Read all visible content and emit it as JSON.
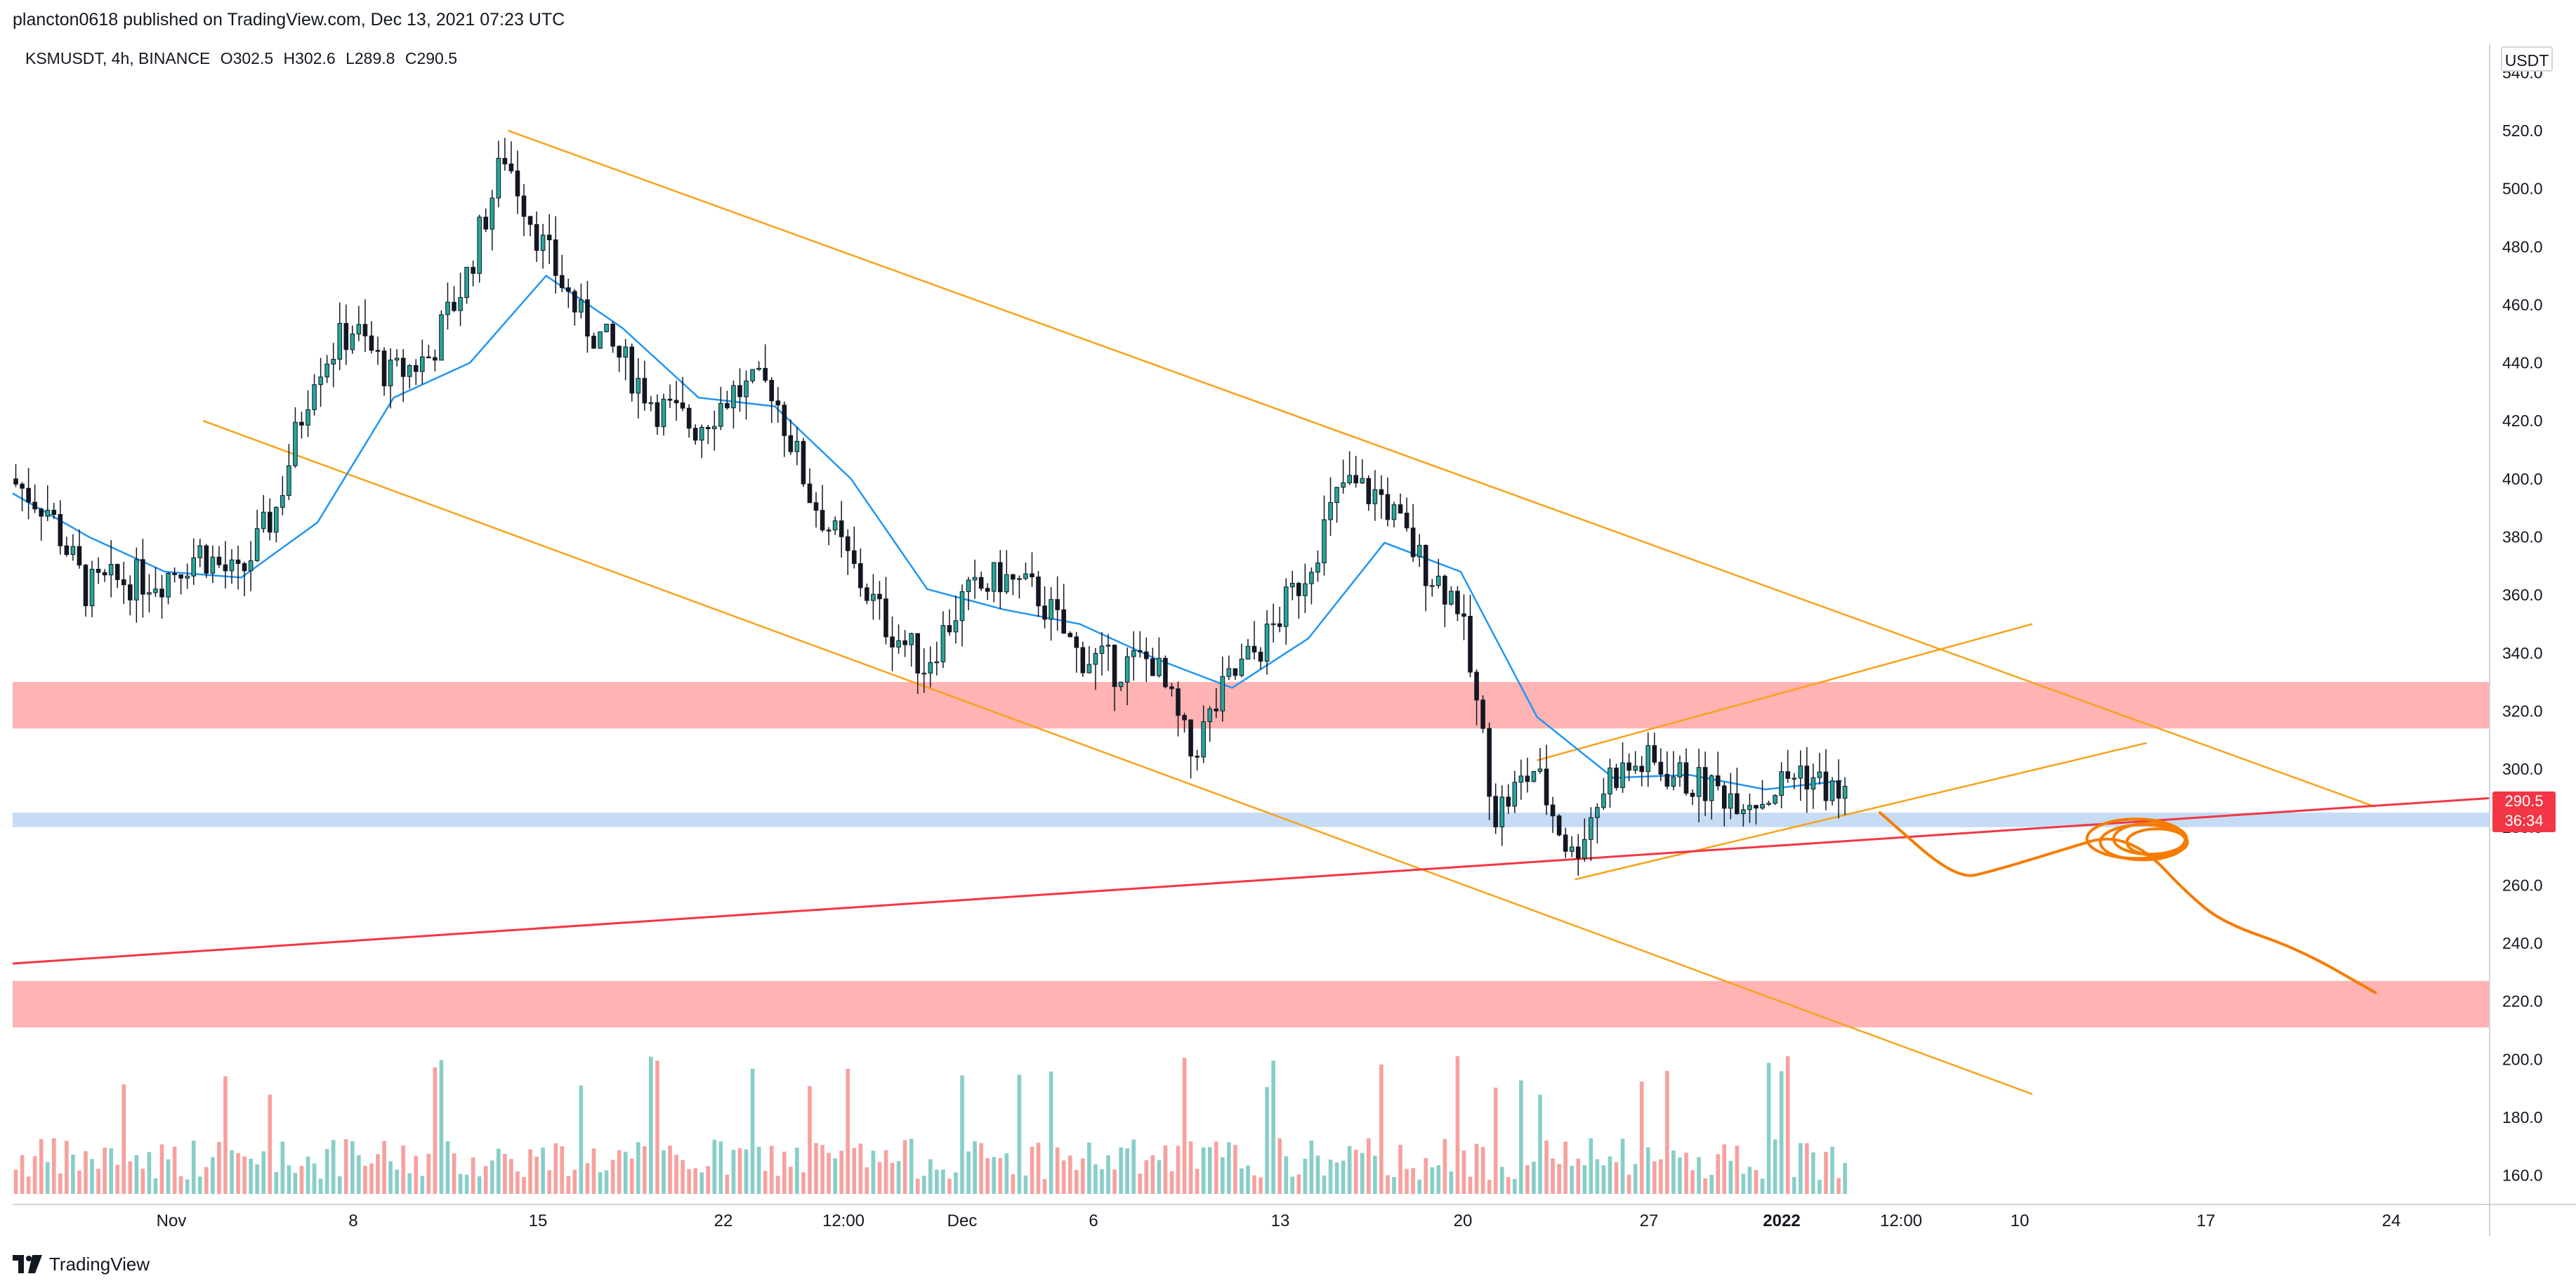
{
  "header": {
    "published_text": "plancton0618 published on TradingView.com, Dec 13, 2021 07:23 UTC"
  },
  "legend": {
    "symbol": "KSMUSDT, 4h, BINANCE",
    "open_label": "O302.5",
    "high_label": "H302.6",
    "low_label": "L289.8",
    "close_label": "C290.5"
  },
  "price_axis": {
    "currency": "USDT",
    "tick_labels": [
      "540.0",
      "520.0",
      "500.0",
      "480.0",
      "460.0",
      "440.0",
      "420.0",
      "400.0",
      "380.0",
      "360.0",
      "340.0",
      "320.0",
      "300.0",
      "280.0",
      "260.0",
      "240.0",
      "220.0",
      "200.0",
      "180.0",
      "160.0"
    ]
  },
  "time_axis": {
    "tick_labels": [
      "Nov",
      "8",
      "15",
      "22",
      "12:00",
      "Dec",
      "6",
      "13",
      "20",
      "27",
      "2022",
      "12:00",
      "10",
      "17",
      "24"
    ]
  },
  "last_price": {
    "price": "290.5",
    "countdown": "36:34",
    "color": "#f23645"
  },
  "footer": {
    "brand": "TradingView"
  },
  "colors": {
    "up": "#26a69a",
    "down": "#ef5350",
    "ema": "#2196f3",
    "channel": "#f7a21b",
    "trend": "#f23645",
    "sketch": "#f57c00",
    "resistance_zone": "#ffb3b3",
    "support_zone": "#c6dcf5"
  },
  "chart_data": {
    "type": "candlestick",
    "symbol": "KSMUSDT",
    "interval": "4h",
    "exchange": "BINANCE",
    "ohlc_last": {
      "open": 302.5,
      "high": 302.6,
      "low": 289.8,
      "close": 290.5
    },
    "y_range": [
      150,
      550
    ],
    "x_range": [
      "2021-10-26",
      "2021-12-30"
    ],
    "price_path": [
      [
        "2021-10-26",
        400
      ],
      [
        "2021-10-27",
        390
      ],
      [
        "2021-10-28",
        362
      ],
      [
        "2021-10-29",
        365
      ],
      [
        "2021-10-30",
        366
      ],
      [
        "2021-10-31",
        375
      ],
      [
        "2021-11-01",
        365
      ],
      [
        "2021-11-02",
        390
      ],
      [
        "2021-11-03",
        438
      ],
      [
        "2021-11-04",
        452
      ],
      [
        "2021-11-05",
        435
      ],
      [
        "2021-11-06",
        442
      ],
      [
        "2021-11-07",
        470
      ],
      [
        "2021-11-08",
        512
      ],
      [
        "2021-11-09",
        480
      ],
      [
        "2021-11-10",
        455
      ],
      [
        "2021-11-11",
        442
      ],
      [
        "2021-11-12",
        425
      ],
      [
        "2021-11-13",
        418
      ],
      [
        "2021-11-14",
        430
      ],
      [
        "2021-11-15",
        432
      ],
      [
        "2021-11-16",
        395
      ],
      [
        "2021-11-17",
        372
      ],
      [
        "2021-11-18",
        350
      ],
      [
        "2021-11-19",
        336
      ],
      [
        "2021-11-20",
        358
      ],
      [
        "2021-11-21",
        366
      ],
      [
        "2021-11-22",
        360
      ],
      [
        "2021-11-23",
        340
      ],
      [
        "2021-11-24",
        335
      ],
      [
        "2021-11-25",
        338
      ],
      [
        "2021-11-26",
        305
      ],
      [
        "2021-11-27",
        330
      ],
      [
        "2021-11-28",
        345
      ],
      [
        "2021-11-29",
        368
      ],
      [
        "2021-11-30",
        398
      ],
      [
        "2021-12-01",
        394
      ],
      [
        "2021-12-02",
        372
      ],
      [
        "2021-12-03",
        358
      ],
      [
        "2021-12-04",
        285
      ],
      [
        "2021-12-05",
        300
      ],
      [
        "2021-12-06",
        270
      ],
      [
        "2021-12-07",
        298
      ],
      [
        "2021-12-08",
        302
      ],
      [
        "2021-12-09",
        296
      ],
      [
        "2021-12-10",
        292
      ],
      [
        "2021-12-11",
        290
      ],
      [
        "2021-12-12",
        300
      ],
      [
        "2021-12-13",
        290.5
      ]
    ],
    "ema": [
      [
        "2021-10-26",
        395
      ],
      [
        "2021-10-28",
        380
      ],
      [
        "2021-10-30",
        368
      ],
      [
        "2021-11-01",
        366
      ],
      [
        "2021-11-03",
        385
      ],
      [
        "2021-11-05",
        428
      ],
      [
        "2021-11-07",
        440
      ],
      [
        "2021-11-09",
        470
      ],
      [
        "2021-11-11",
        452
      ],
      [
        "2021-11-13",
        428
      ],
      [
        "2021-11-15",
        425
      ],
      [
        "2021-11-17",
        400
      ],
      [
        "2021-11-19",
        362
      ],
      [
        "2021-11-21",
        355
      ],
      [
        "2021-11-23",
        350
      ],
      [
        "2021-11-25",
        338
      ],
      [
        "2021-11-27",
        328
      ],
      [
        "2021-11-29",
        345
      ],
      [
        "2021-12-01",
        378
      ],
      [
        "2021-12-03",
        368
      ],
      [
        "2021-12-05",
        318
      ],
      [
        "2021-12-07",
        297
      ],
      [
        "2021-12-09",
        298
      ],
      [
        "2021-12-11",
        293
      ],
      [
        "2021-12-13",
        296
      ]
    ],
    "zones": [
      {
        "kind": "resistance",
        "from": 314,
        "to": 330
      },
      {
        "kind": "support",
        "from": 280,
        "to": 285
      },
      {
        "kind": "resistance",
        "from": 211,
        "to": 227
      }
    ],
    "trendlines": [
      {
        "kind": "channel-top",
        "from": [
          "2021-11-08",
          520
        ],
        "to": [
          "2021-12-27",
          287
        ]
      },
      {
        "kind": "channel-bottom",
        "from": [
          "2021-10-31",
          420
        ],
        "to": [
          "2021-12-18",
          188
        ]
      },
      {
        "kind": "wedge-top",
        "from": [
          "2021-12-05",
          303
        ],
        "to": [
          "2021-12-18",
          350
        ]
      },
      {
        "kind": "wedge-bottom",
        "from": [
          "2021-12-06",
          262
        ],
        "to": [
          "2021-12-21",
          309
        ]
      },
      {
        "kind": "long-support",
        "from": [
          "2021-10-26",
          233
        ],
        "to": [
          "2021-12-30",
          290
        ]
      }
    ],
    "projection": [
      [
        "2021-12-14",
        285
      ],
      [
        "2021-12-16",
        262
      ],
      [
        "2021-12-17",
        265
      ],
      [
        "2021-12-19",
        273
      ],
      [
        "2021-12-20",
        277
      ],
      [
        "2021-12-21",
        272
      ],
      [
        "2021-12-22",
        258
      ],
      [
        "2021-12-23",
        247
      ],
      [
        "2021-12-25",
        238
      ],
      [
        "2021-12-27",
        223
      ]
    ]
  }
}
